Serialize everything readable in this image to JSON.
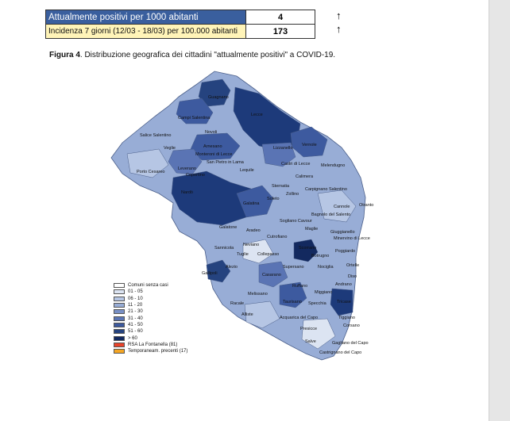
{
  "stats": {
    "rows": [
      {
        "label": "Attualmente positivi per 1000 abitanti",
        "value": "4",
        "arrow": "↑"
      },
      {
        "label": "Incidenza 7 giorni (12/03 - 18/03)  per 100.000 abitanti",
        "value": "173",
        "arrow": "↑"
      }
    ]
  },
  "caption": {
    "prefix": "Figura 4",
    "text": ". Distribuzione  geografica dei cittadini \"attualmente positivi\" a COVID-19."
  },
  "legend": [
    {
      "label": "Comuni senza casi",
      "color": "#ffffff"
    },
    {
      "label": "01 - 05",
      "color": "#dce4f2"
    },
    {
      "label": "06 - 10",
      "color": "#b6c6e4"
    },
    {
      "label": "11 - 20",
      "color": "#98add6"
    },
    {
      "label": "21 - 30",
      "color": "#7890c6"
    },
    {
      "label": "31 - 40",
      "color": "#5a74b4"
    },
    {
      "label": "41 - 50",
      "color": "#3d5a9f"
    },
    {
      "label": "51 - 60",
      "color": "#25437f"
    },
    {
      "label": "> 60",
      "color": "#13295f"
    },
    {
      "label": "RSA La Fontanella (81)",
      "color": "#e8432a"
    },
    {
      "label": "Temporaneam. precenti (17)",
      "color": "#f5a623"
    }
  ],
  "map_labels": [
    "Guagnano",
    "Campi Salentina",
    "Lecce",
    "Novoli",
    "Salice Salentino",
    "Veglie",
    "Arnesano",
    "Monteroni di Lecce",
    "Lizzanello",
    "Vernole",
    "San Pietro in Lama",
    "Porto Cesareo",
    "Leverano",
    "Copertino",
    "Lequile",
    "Castri di Lecce",
    "Melendugno",
    "Calimera",
    "Nardò",
    "Sternatia",
    "Zollino",
    "Carpignano Salentino",
    "Galatina",
    "Soleto",
    "Cannole",
    "Otranto",
    "Sogliano Cavour",
    "Bagnolo del Salento",
    "Galatone",
    "Aradeo",
    "Maglie",
    "Cutrofiano",
    "Giuggianello",
    "Minervino di Lecce",
    "Sannicola",
    "Neviano",
    "Tuglie",
    "Collepasso",
    "Scorrano",
    "Poggiardo",
    "Botrugno",
    "Supersano",
    "Nociglia",
    "Ortelle",
    "Alezio",
    "Diso",
    "Gallipoli",
    "Casarano",
    "Ruffano",
    "Andrano",
    "Melissano",
    "Miggiano",
    "Racale",
    "Taurisano",
    "Specchia",
    "Tricase",
    "Alliste",
    "Acquarica del Capo",
    "Tiggiano",
    "Presicce",
    "Corsano",
    "Salve",
    "Gagliano del Capo",
    "Castrignano del Capo"
  ]
}
